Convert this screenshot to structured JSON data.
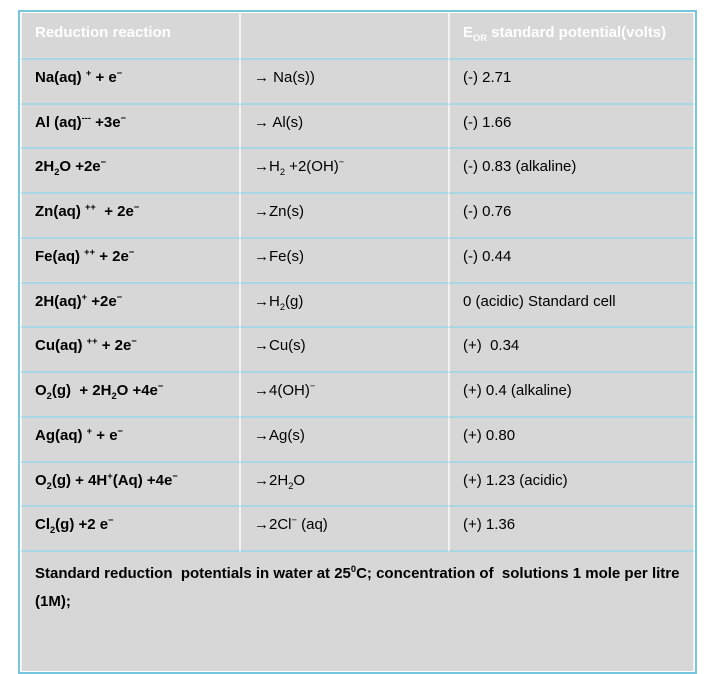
{
  "table": {
    "colors": {
      "cell_bg": "#d7d7d7",
      "outer_border": "#74c5dd",
      "row_divider": "#a9d7e5",
      "col_divider": "#f2f2f2",
      "header_text": "#ffffff",
      "body_text": "#000000"
    },
    "header": {
      "reaction": "Reduction reaction",
      "middle": "",
      "potential": "E~OR~ standard potential(volts)"
    },
    "rows": [
      {
        "reactant": "Na(aq) ^+^ + e^−^",
        "product": "→ Na(s))",
        "potential": "(-) 2.71"
      },
      {
        "reactant": "Al (aq)^---^ +3e^−^",
        "product": "→ Al(s)",
        "potential": "(-) 1.66"
      },
      {
        "reactant": "2H~2~O +2e^−^",
        "product": "→H~2~ +2(OH)^−^",
        "potential": "(-) 0.83 (alkaline)"
      },
      {
        "reactant": "Zn(aq) ^++^  + 2e^−^",
        "product": "→Zn(s)",
        "potential": "(-) 0.76"
      },
      {
        "reactant": "Fe(aq) ^++^ + 2e^−^",
        "product": "→Fe(s)",
        "potential": "(-) 0.44"
      },
      {
        "reactant": "2H(aq)^+^ +2e^−^",
        "product": "→H~2~(g)",
        "potential": "0 (acidic) Standard cell"
      },
      {
        "reactant": "Cu(aq) ^++^ + 2e^−^",
        "product": "→Cu(s)",
        "potential": "(+)  0.34"
      },
      {
        "reactant": "O~2~(g)  + 2H~2~O +4e^−^",
        "product": "→4(OH)^−^",
        "potential": "(+) 0.4 (alkaline)"
      },
      {
        "reactant": "Ag(aq) ^+^ + e^−^",
        "product": "→Ag(s)",
        "potential": "(+) 0.80"
      },
      {
        "reactant": "O~2~(g) + 4H^+^(Aq) +4e^−^",
        "product": "→2H~2~O",
        "potential": "(+) 1.23 (acidic)"
      },
      {
        "reactant": "Cl~2~(g) +2 e^−^",
        "product": "→2Cl^−^ (aq)",
        "potential": "(+) 1.36"
      }
    ],
    "footnote": "Standard reduction  potentials in water at 25^0^C; concentration of  solutions 1 mole per litre (1M);"
  }
}
